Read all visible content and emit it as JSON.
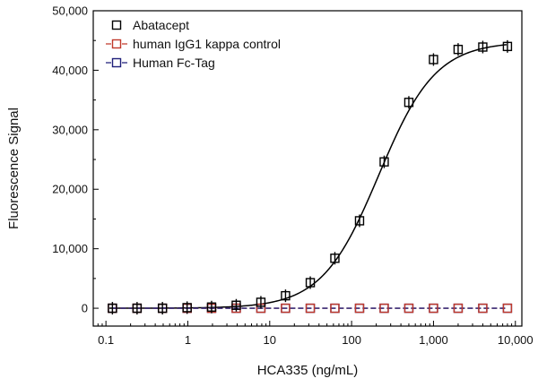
{
  "chart_data": {
    "type": "scatter",
    "title": "",
    "xlabel": "HCA335 (ng/mL)",
    "ylabel": "Fluorescence Signal",
    "xscale": "log",
    "xlim": [
      0.07,
      12000
    ],
    "ylim": [
      -3000,
      50000
    ],
    "xticks": [
      0.1,
      1,
      10,
      100,
      1000,
      10000
    ],
    "xtick_labels": [
      "0.1",
      "1",
      "10",
      "100",
      "1,000",
      "10,000"
    ],
    "yticks": [
      0,
      10000,
      20000,
      30000,
      40000,
      50000
    ],
    "ytick_labels": [
      "0",
      "10,000",
      "20,000",
      "30,000",
      "40,000",
      "50,000"
    ],
    "grid": false,
    "legend_position": "top-left",
    "series": [
      {
        "name": "Abatacept",
        "color": "#000000",
        "marker": "open-square",
        "fit_curve": true,
        "x": [
          0.12,
          0.24,
          0.49,
          0.98,
          1.95,
          3.9,
          7.8,
          15.6,
          31.3,
          62.5,
          125,
          250,
          500,
          1000,
          2000,
          4000,
          8000
        ],
        "y": [
          0,
          0,
          0,
          100,
          200,
          500,
          1000,
          2100,
          4300,
          8400,
          14700,
          24600,
          34600,
          41800,
          43500,
          43900,
          44000
        ]
      },
      {
        "name": "human IgG1 kappa control",
        "color": "#c0392b",
        "marker": "open-square",
        "line": "dashed",
        "x": [
          0.12,
          0.24,
          0.49,
          0.98,
          1.95,
          3.9,
          7.8,
          15.6,
          31.3,
          62.5,
          125,
          250,
          500,
          1000,
          2000,
          4000,
          8000
        ],
        "y": [
          0,
          0,
          0,
          0,
          0,
          0,
          0,
          0,
          0,
          0,
          0,
          0,
          0,
          0,
          0,
          0,
          0
        ]
      },
      {
        "name": "Human Fc-Tag",
        "color": "#1f1f7a",
        "marker": "open-square",
        "line": "dashed",
        "x": [
          0.12,
          0.24,
          0.49,
          0.98,
          1.95,
          3.9,
          7.8,
          15.6,
          31.3,
          62.5,
          125,
          250,
          500,
          1000,
          2000,
          4000,
          8000
        ],
        "y": [
          0,
          0,
          0,
          0,
          0,
          0,
          0,
          0,
          0,
          0,
          0,
          0,
          0,
          0,
          0,
          0,
          0
        ]
      }
    ]
  }
}
